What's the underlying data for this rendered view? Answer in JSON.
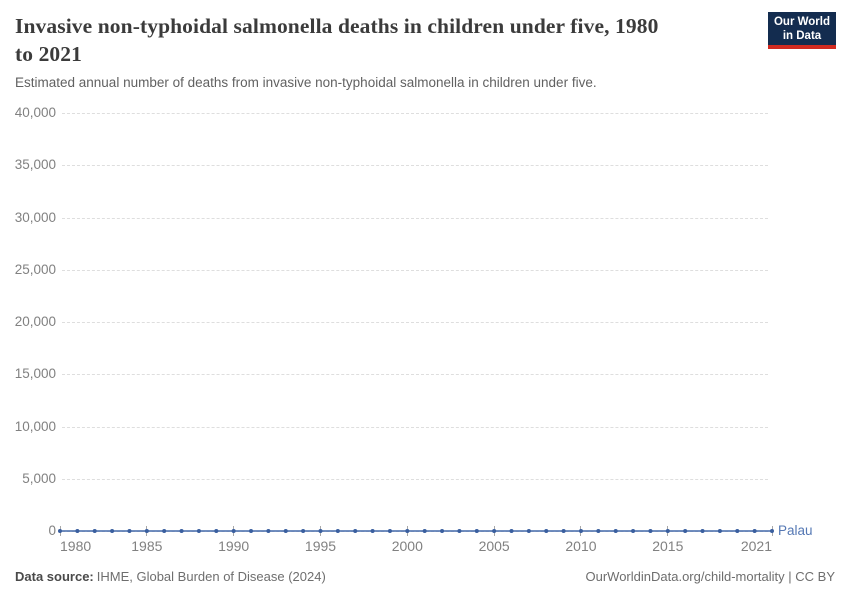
{
  "header": {
    "title_line1": "Invasive non-typhoidal salmonella deaths in children under five, 1980",
    "title_line2": "to 2021",
    "subtitle": "Estimated annual number of deaths from invasive non-typhoidal salmonella in children under five.",
    "logo": {
      "line1": "Our World",
      "line2": "in Data",
      "bg": "#132c4f",
      "accent": "#d12a20"
    }
  },
  "chart_data": {
    "type": "line",
    "title": "Invasive non-typhoidal salmonella deaths in children under five, 1980 to 2021",
    "subtitle": "Estimated annual number of deaths from invasive non-typhoidal salmonella in children under five.",
    "xlabel": "",
    "ylabel": "",
    "xlim": [
      1980,
      2021
    ],
    "ylim": [
      0,
      40000
    ],
    "x_ticks": [
      1980,
      1985,
      1990,
      1995,
      2000,
      2005,
      2010,
      2015,
      2021
    ],
    "y_ticks": [
      0,
      5000,
      10000,
      15000,
      20000,
      25000,
      30000,
      35000,
      40000
    ],
    "grid": "horizontal-dashed",
    "legend_position": "end-of-line",
    "series": [
      {
        "name": "Palau",
        "color": "#4268aa",
        "dot_color": "#3a5f9f",
        "label_color": "#5578b4",
        "x": [
          1980,
          1981,
          1982,
          1983,
          1984,
          1985,
          1986,
          1987,
          1988,
          1989,
          1990,
          1991,
          1992,
          1993,
          1994,
          1995,
          1996,
          1997,
          1998,
          1999,
          2000,
          2001,
          2002,
          2003,
          2004,
          2005,
          2006,
          2007,
          2008,
          2009,
          2010,
          2011,
          2012,
          2013,
          2014,
          2015,
          2016,
          2017,
          2018,
          2019,
          2020,
          2021
        ],
        "values": [
          0,
          0,
          0,
          0,
          0,
          0,
          0,
          0,
          0,
          0,
          0,
          0,
          0,
          0,
          0,
          0,
          0,
          0,
          0,
          0,
          0,
          0,
          0,
          0,
          0,
          0,
          0,
          0,
          0,
          0,
          0,
          0,
          0,
          0,
          0,
          0,
          0,
          0,
          0,
          0,
          0,
          0
        ]
      }
    ]
  },
  "footer": {
    "datasource_label": "Data source:",
    "datasource_value": "IHME, Global Burden of Disease (2024)",
    "credit": "OurWorldinData.org/child-mortality | CC BY"
  }
}
